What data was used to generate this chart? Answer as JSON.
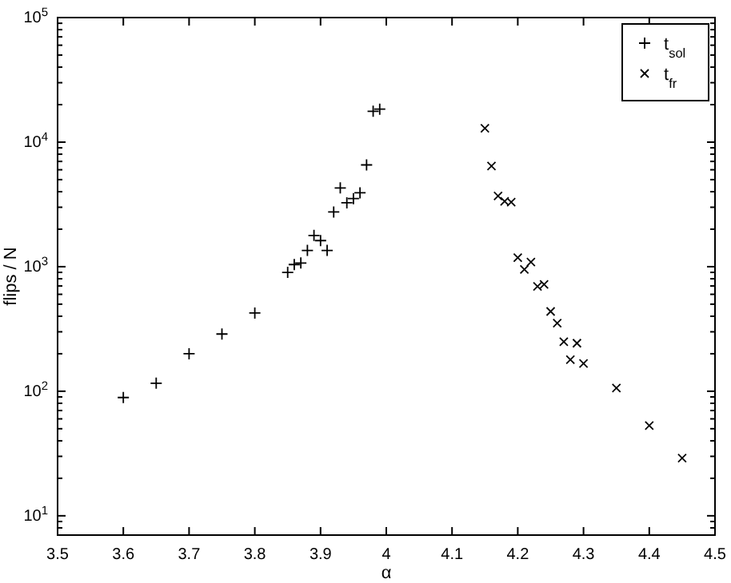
{
  "chart_data": {
    "type": "scatter",
    "xlabel": "α",
    "ylabel": "flips / N",
    "log": "y",
    "grid": false,
    "legend": "top right",
    "xlim": [
      3.5,
      4.5
    ],
    "xticks": [
      3.5,
      3.6,
      3.7,
      3.8,
      3.9,
      4,
      4.1,
      4.2,
      4.3,
      4.4,
      4.5
    ],
    "ylim": [
      7,
      100000
    ],
    "yticks": [
      {
        "value": 10,
        "label": "10$^{1}$"
      },
      {
        "value": 100,
        "label": "10$^{2}$"
      },
      {
        "value": 1000,
        "label": "10$^{3}$"
      },
      {
        "value": 10000,
        "label": "10$^{4}$"
      },
      {
        "value": 100000,
        "label": "10$^{5}$"
      }
    ],
    "series": [
      {
        "name": "t$_{sol}$",
        "color": "#000000",
        "marker": "plus",
        "x": [
          3.6,
          3.65,
          3.7,
          3.75,
          3.8,
          3.85,
          3.86,
          3.87,
          3.88,
          3.89,
          3.9,
          3.91,
          3.92,
          3.93,
          3.94,
          3.95,
          3.96,
          3.97,
          3.98,
          3.99
        ],
        "values": [
          89,
          116,
          200,
          288,
          425,
          900,
          1040,
          1070,
          1350,
          1780,
          1620,
          1350,
          2750,
          4290,
          3260,
          3520,
          3920,
          6560,
          17700,
          18400
        ]
      },
      {
        "name": "t$_{fr}$",
        "color": "#000000",
        "marker": "cross",
        "x": [
          4.15,
          4.16,
          4.17,
          4.18,
          4.19,
          4.2,
          4.21,
          4.22,
          4.23,
          4.24,
          4.25,
          4.26,
          4.27,
          4.28,
          4.29,
          4.3,
          4.35,
          4.4,
          4.45
        ],
        "values": [
          12900,
          6430,
          3700,
          3350,
          3300,
          1180,
          950,
          1090,
          695,
          720,
          437,
          352,
          250,
          179,
          243,
          167,
          106,
          53,
          29
        ]
      }
    ]
  }
}
